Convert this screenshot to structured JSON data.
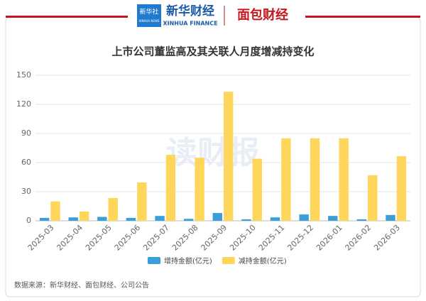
{
  "header": {
    "badge": "新华社",
    "badge_sub": "XINHUA NEWS",
    "brand": "新华财经",
    "brand_sub": "XINHUA FINANCE",
    "partner": "面包财经"
  },
  "chart_data": {
    "type": "bar",
    "title": "上市公司董监高及其关联人月度增减持变化",
    "categories": [
      "2025-03",
      "2025-04",
      "2025-05",
      "2025-06",
      "2025-07",
      "2025-08",
      "2025-09",
      "2025-10",
      "2025-11",
      "2025-12",
      "2026-01",
      "2026-02",
      "2026-03"
    ],
    "series": [
      {
        "name": "增持金额(亿元)",
        "color": "#3a9fd8",
        "values": [
          3,
          3.5,
          4,
          3,
          5,
          2,
          8,
          1.5,
          3.5,
          6.5,
          5,
          1.5,
          6
        ]
      },
      {
        "name": "减持金额(亿元)",
        "color": "#ffd65c",
        "values": [
          20,
          9.5,
          23.5,
          39.5,
          68,
          65,
          133,
          64,
          85,
          85,
          85,
          47,
          66.5
        ]
      }
    ],
    "ylim": [
      0,
      150
    ],
    "yticks": [
      0,
      30,
      60,
      90,
      120,
      150
    ],
    "grid": true,
    "legend": "bottom",
    "watermark": "读财报",
    "source": "数据来源：新华财经、面包财经、公司公告"
  }
}
